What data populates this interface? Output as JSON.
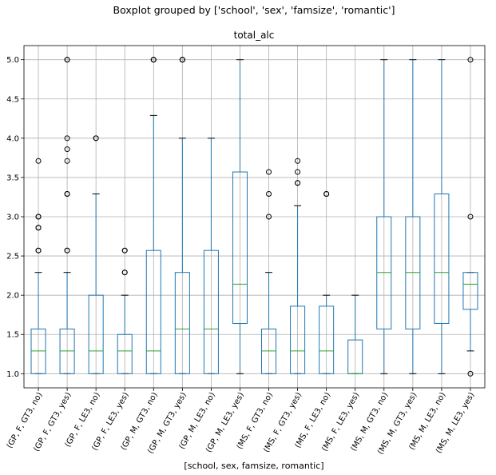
{
  "figure": {
    "suptitle": "Boxplot grouped by ['school', 'sex', 'famsize', 'romantic']"
  },
  "chart_data": {
    "type": "boxplot",
    "title": "total_alc",
    "xlabel": "[school, sex, famsize, romantic]",
    "ylabel": "",
    "ylim": [
      0.82,
      5.18
    ],
    "yticks": [
      "1.0",
      "1.5",
      "2.0",
      "2.5",
      "3.0",
      "3.5",
      "4.0",
      "4.5",
      "5.0"
    ],
    "grid": true,
    "categories": [
      "(GP, F, GT3, no)",
      "(GP, F, GT3, yes)",
      "(GP, F, LE3, no)",
      "(GP, F, LE3, yes)",
      "(GP, M, GT3, no)",
      "(GP, M, GT3, yes)",
      "(GP, M, LE3, no)",
      "(GP, M, LE3, yes)",
      "(MS, F, GT3, no)",
      "(MS, F, GT3, yes)",
      "(MS, F, LE3, no)",
      "(MS, F, LE3, yes)",
      "(MS, M, GT3, no)",
      "(MS, M, GT3, yes)",
      "(MS, M, LE3, no)",
      "(MS, M, LE3, yes)"
    ],
    "boxes": [
      {
        "whislo": 1.0,
        "q1": 1.0,
        "med": 1.29,
        "q3": 1.57,
        "whishi": 2.29,
        "fliers": [
          3.71,
          3.0,
          3.0,
          2.86,
          2.86,
          2.57,
          2.57
        ]
      },
      {
        "whislo": 1.0,
        "q1": 1.0,
        "med": 1.29,
        "q3": 1.57,
        "whishi": 2.29,
        "fliers": [
          5.0,
          5.0,
          4.0,
          3.86,
          3.71,
          3.29,
          3.29,
          2.57,
          2.57
        ]
      },
      {
        "whislo": 1.0,
        "q1": 1.0,
        "med": 1.29,
        "q3": 2.0,
        "whishi": 3.29,
        "fliers": [
          4.0,
          4.0
        ]
      },
      {
        "whislo": 1.0,
        "q1": 1.0,
        "med": 1.29,
        "q3": 1.5,
        "whishi": 2.0,
        "fliers": [
          2.57,
          2.57,
          2.29,
          2.29
        ]
      },
      {
        "whislo": 1.0,
        "q1": 1.0,
        "med": 1.29,
        "q3": 2.57,
        "whishi": 4.29,
        "fliers": [
          5.0,
          5.0,
          5.0
        ]
      },
      {
        "whislo": 1.0,
        "q1": 1.0,
        "med": 1.57,
        "q3": 2.29,
        "whishi": 4.0,
        "fliers": [
          5.0,
          5.0,
          5.0
        ]
      },
      {
        "whislo": 1.0,
        "q1": 1.0,
        "med": 1.57,
        "q3": 2.57,
        "whishi": 4.0,
        "fliers": []
      },
      {
        "whislo": 1.0,
        "q1": 1.64,
        "med": 2.14,
        "q3": 3.57,
        "whishi": 5.0,
        "fliers": []
      },
      {
        "whislo": 1.0,
        "q1": 1.0,
        "med": 1.29,
        "q3": 1.57,
        "whishi": 2.29,
        "fliers": [
          3.57,
          3.29,
          3.0
        ]
      },
      {
        "whislo": 1.0,
        "q1": 1.0,
        "med": 1.29,
        "q3": 1.86,
        "whishi": 3.14,
        "fliers": [
          3.71,
          3.57,
          3.43,
          3.43
        ]
      },
      {
        "whislo": 1.0,
        "q1": 1.0,
        "med": 1.29,
        "q3": 1.86,
        "whishi": 2.0,
        "fliers": [
          3.29,
          3.29
        ]
      },
      {
        "whislo": 1.0,
        "q1": 1.0,
        "med": 1.0,
        "q3": 1.43,
        "whishi": 2.0,
        "fliers": []
      },
      {
        "whislo": 1.0,
        "q1": 1.57,
        "med": 2.29,
        "q3": 3.0,
        "whishi": 5.0,
        "fliers": []
      },
      {
        "whislo": 1.0,
        "q1": 1.57,
        "med": 2.29,
        "q3": 3.0,
        "whishi": 5.0,
        "fliers": []
      },
      {
        "whislo": 1.0,
        "q1": 1.64,
        "med": 2.29,
        "q3": 3.29,
        "whishi": 5.0,
        "fliers": []
      },
      {
        "whislo": 1.29,
        "q1": 1.82,
        "med": 2.14,
        "q3": 2.29,
        "whishi": 2.29,
        "fliers": [
          5.0,
          3.0,
          1.0
        ]
      }
    ],
    "colors": {
      "box": "#1f77b4",
      "median": "#2ca02c",
      "whisker_cap": "#000000",
      "flier_edge": "#000000",
      "grid": "#b0b0b0"
    }
  }
}
